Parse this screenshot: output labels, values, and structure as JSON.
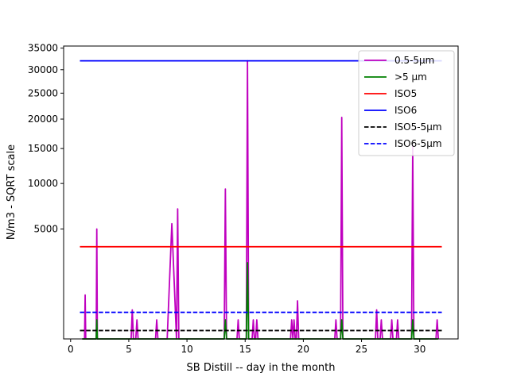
{
  "chart_data": {
    "type": "line",
    "title": "",
    "xlabel": "SB Distill -- day in the month",
    "ylabel": "N/m3 - SQRT scale",
    "xlim": [
      -0.6,
      33.3
    ],
    "ylim": [
      0,
      35500
    ],
    "yscale": "sqrt",
    "grid": false,
    "legend_position": "top-right",
    "x_ticks": [
      0,
      5,
      10,
      15,
      20,
      25,
      30
    ],
    "x_tick_labels": [
      "0",
      "5",
      "10",
      "15",
      "20",
      "25",
      "30"
    ],
    "y_ticks": [
      5000,
      10000,
      15000,
      20000,
      25000,
      30000,
      35000
    ],
    "y_tick_labels": [
      "5000",
      "10000",
      "15000",
      "20000",
      "25000",
      "30000",
      "35000"
    ],
    "series": [
      {
        "name": "0.5-5µm",
        "color": "#bf00bf",
        "style": "solid",
        "x": [
          1.0,
          1.2,
          1.25,
          1.3,
          2.2,
          2.25,
          2.3,
          5.2,
          5.3,
          5.4,
          5.6,
          5.7,
          5.8,
          7.3,
          7.4,
          7.5,
          8.3,
          8.7,
          9.1,
          9.2,
          9.3,
          9.4,
          13.2,
          13.3,
          13.4,
          14.3,
          14.4,
          14.5,
          15.1,
          15.2,
          15.3,
          15.6,
          15.7,
          15.8,
          15.9,
          16.0,
          16.1,
          18.9,
          19.0,
          19.1,
          19.2,
          19.3,
          19.4,
          19.5,
          19.6,
          22.7,
          22.8,
          22.9,
          23.2,
          23.3,
          23.4,
          26.2,
          26.3,
          26.4,
          26.6,
          26.7,
          26.8,
          27.5,
          27.6,
          27.7,
          28.0,
          28.1,
          28.2,
          29.3,
          29.4,
          29.5,
          31.4,
          31.5,
          31.6
        ],
        "y": [
          0,
          0,
          800,
          0,
          0,
          5000,
          0,
          0,
          350,
          0,
          0,
          150,
          0,
          0,
          150,
          0,
          0,
          5500,
          0,
          7000,
          0,
          0,
          0,
          9300,
          0,
          0,
          150,
          0,
          0,
          32000,
          0,
          0,
          150,
          0,
          0,
          150,
          0,
          0,
          150,
          0,
          150,
          0,
          0,
          600,
          0,
          0,
          150,
          0,
          0,
          20300,
          0,
          0,
          350,
          0,
          0,
          150,
          0,
          0,
          150,
          0,
          0,
          150,
          0,
          0,
          15500,
          0,
          0,
          150,
          0
        ]
      },
      {
        "name": ">5 µm",
        "color": "#008000",
        "style": "solid",
        "x": [
          1.0,
          2.2,
          2.25,
          2.3,
          13.2,
          13.3,
          13.4,
          15.1,
          15.2,
          15.3,
          23.2,
          23.3,
          23.4,
          29.3,
          29.4,
          29.5,
          31.6
        ],
        "y": [
          0,
          0,
          150,
          0,
          0,
          150,
          0,
          0,
          2400,
          0,
          0,
          150,
          0,
          0,
          150,
          0,
          0
        ]
      },
      {
        "name": "ISO5",
        "color": "#ff0000",
        "style": "solid",
        "x": [
          0.8,
          31.9
        ],
        "y": [
          3520,
          3520
        ]
      },
      {
        "name": "ISO6",
        "color": "#0000ff",
        "style": "solid",
        "x": [
          0.8,
          31.9
        ],
        "y": [
          32000,
          32000
        ]
      },
      {
        "name": "ISO5-5µm",
        "color": "#000000",
        "style": "dashed",
        "x": [
          0.8,
          31.9
        ],
        "y": [
          29,
          29
        ]
      },
      {
        "name": "ISO6-5µm",
        "color": "#0000ff",
        "style": "dashed",
        "x": [
          0.8,
          31.9
        ],
        "y": [
          293,
          293
        ]
      }
    ]
  }
}
